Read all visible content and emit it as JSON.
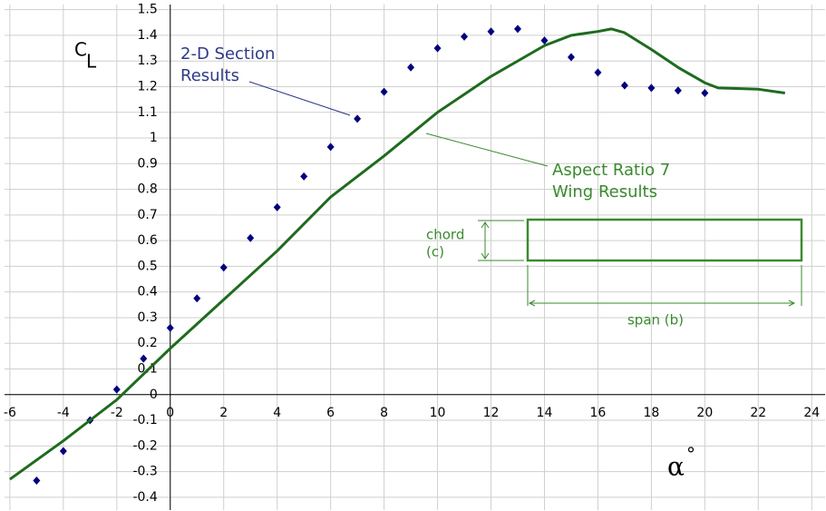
{
  "chart_data": {
    "type": "combo",
    "xlim": [
      -6.2,
      24.5
    ],
    "ylim": [
      -0.45,
      1.52
    ],
    "xticks": [
      -6,
      -4,
      -2,
      0,
      2,
      4,
      6,
      8,
      10,
      12,
      14,
      16,
      18,
      20,
      22,
      24
    ],
    "yticks": [
      -0.4,
      -0.3,
      -0.2,
      -0.1,
      0,
      0.1,
      0.2,
      0.3,
      0.4,
      0.5,
      0.6,
      0.7,
      0.8,
      0.9,
      1,
      1.1,
      1.2,
      1.3,
      1.4,
      1.5
    ],
    "grid": true,
    "ylabel": {
      "text": "C",
      "subscript": "L"
    },
    "xlabel": {
      "text": "α",
      "superscript": "°"
    },
    "series": [
      {
        "type": "scatter",
        "color": "#00007f",
        "x": [
          -5,
          -4,
          -3,
          -2,
          -1,
          0,
          1,
          2,
          3,
          4,
          5,
          6,
          7,
          8,
          9,
          10,
          11,
          12,
          13,
          14,
          15,
          16,
          17,
          18,
          19,
          20
        ],
        "y": [
          -0.335,
          -0.22,
          -0.1,
          0.02,
          0.14,
          0.26,
          0.375,
          0.495,
          0.61,
          0.73,
          0.85,
          0.965,
          1.075,
          1.18,
          1.275,
          1.35,
          1.395,
          1.415,
          1.425,
          1.38,
          1.315,
          1.255,
          1.205,
          1.195,
          1.185,
          1.175
        ]
      },
      {
        "type": "line",
        "color": "#1e6b1e",
        "x": [
          -6,
          -4,
          -2,
          0,
          2,
          4,
          6,
          8,
          10,
          12,
          14,
          15,
          16,
          16.5,
          17,
          18,
          19,
          20,
          20.5,
          22,
          23
        ],
        "y": [
          -0.33,
          -0.18,
          -0.02,
          0.18,
          0.37,
          0.56,
          0.77,
          0.93,
          1.1,
          1.24,
          1.36,
          1.4,
          1.415,
          1.425,
          1.41,
          1.345,
          1.275,
          1.215,
          1.195,
          1.19,
          1.175
        ]
      }
    ],
    "annotations": [
      {
        "lines": [
          "2-D Section",
          "Results"
        ],
        "color": "#2e3a87"
      },
      {
        "lines": [
          "Aspect Ratio 7",
          "Wing Results"
        ],
        "color": "#3a8a2e"
      }
    ]
  },
  "diagram": {
    "chord_label": [
      "chord",
      "(c)"
    ],
    "span_label": "span (b)"
  }
}
